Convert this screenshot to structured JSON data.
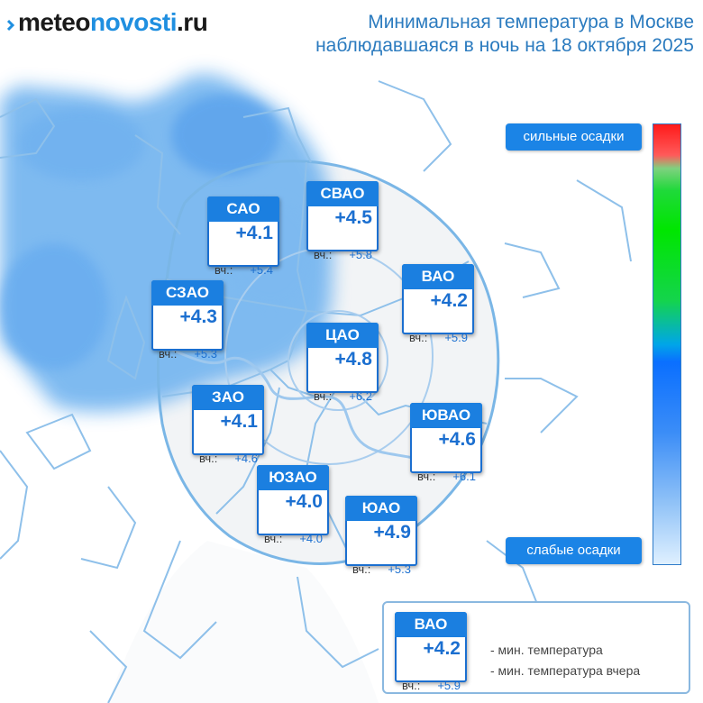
{
  "logo": {
    "part1": "meteo",
    "part2": "novosti",
    "part3": ".ru"
  },
  "title": {
    "line1": "Минимальная температура в Москве",
    "line2": "наблюдавшаяся в ночь на 18 октября 2025"
  },
  "colors": {
    "accent": "#1b7fe0",
    "precip": "#5aa8ee",
    "boundary": "#7ab6e6"
  },
  "districts": [
    {
      "name": "САО",
      "temp": "+4.1",
      "yesterday": "+5.4"
    },
    {
      "name": "СВАО",
      "temp": "+4.5",
      "yesterday": "+5.8"
    },
    {
      "name": "СЗАО",
      "temp": "+4.3",
      "yesterday": "+5.3"
    },
    {
      "name": "ВАО",
      "temp": "+4.2",
      "yesterday": "+5.9"
    },
    {
      "name": "ЦАО",
      "temp": "+4.8",
      "yesterday": "+6.2"
    },
    {
      "name": "ЗАО",
      "temp": "+4.1",
      "yesterday": "+4.6"
    },
    {
      "name": "ЮВАО",
      "temp": "+4.6",
      "yesterday": "+6.1"
    },
    {
      "name": "ЮЗАО",
      "temp": "+4.0",
      "yesterday": "+4.0"
    },
    {
      "name": "ЮАО",
      "temp": "+4.9",
      "yesterday": "+5.3"
    }
  ],
  "yesterday_label": "вч.:",
  "scale": {
    "top_label": "сильные осадки",
    "bottom_label": "слабые осадки"
  },
  "legend": {
    "name": "ВАО",
    "temp": "+4.2",
    "yesterday": "+5.9",
    "min_label": "- мин. температура",
    "min_yesterday_label": "- мин. температура вчера"
  }
}
